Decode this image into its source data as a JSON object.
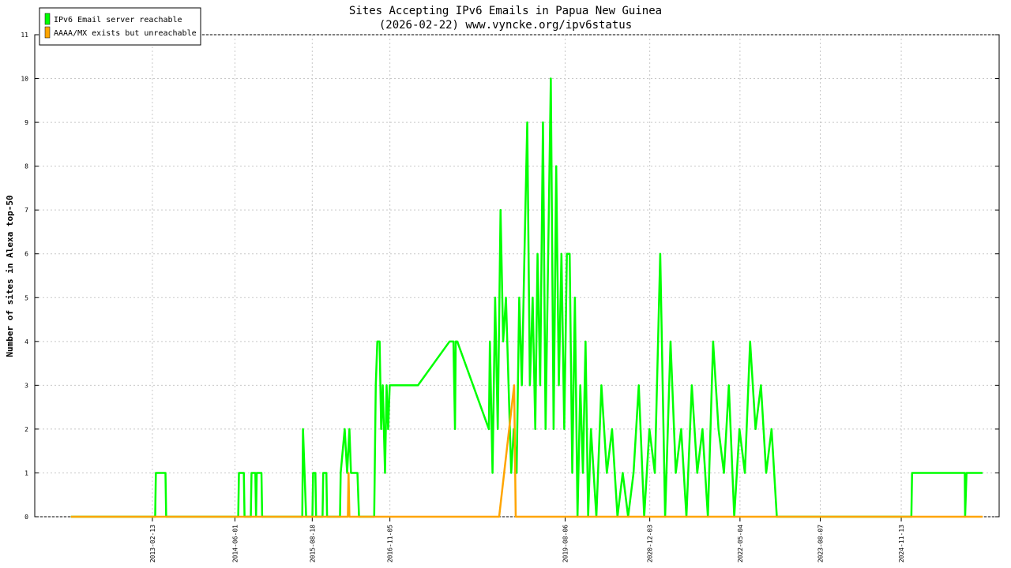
{
  "chart_data": {
    "type": "line",
    "title": "Sites Accepting IPv6 Emails in Papua New Guinea",
    "subtitle": "(2026-02-22) www.vyncke.org/ipv6status",
    "y_label": "Number of sites in Alexa top-50",
    "xlim": [
      "2011-04-11",
      "2026-05-28"
    ],
    "xticks": [
      "2013-02-13",
      "2014-06-01",
      "2015-08-18",
      "2016-11-05",
      "2019-08-06",
      "2020-12-03",
      "2022-05-04",
      "2023-08-07",
      "2024-11-13"
    ],
    "ylim": [
      0,
      11
    ],
    "yticks": [
      0,
      1,
      2,
      3,
      4,
      5,
      6,
      7,
      8,
      9,
      10,
      11
    ],
    "grid": true,
    "legend": "top-left",
    "series": [
      {
        "name": "IPv6 Email server reachable",
        "color": "#00ff00",
        "x": [
          "2011-11-04",
          "2013-03-01",
          "2013-03-05",
          "2013-04-29",
          "2013-05-03",
          "2014-06-20",
          "2014-06-24",
          "2014-07-22",
          "2014-07-26",
          "2014-08-31",
          "2014-09-04",
          "2014-09-26",
          "2014-09-30",
          "2014-10-04",
          "2014-10-31",
          "2014-11-04",
          "2015-06-22",
          "2015-06-26",
          "2015-07-05",
          "2015-07-14",
          "2015-08-19",
          "2015-08-23",
          "2015-09-05",
          "2015-09-09",
          "2015-10-16",
          "2015-10-20",
          "2015-11-07",
          "2015-11-11",
          "2016-01-24",
          "2016-01-28",
          "2016-02-20",
          "2016-03-05",
          "2016-03-18",
          "2016-03-27",
          "2016-05-03",
          "2016-05-12",
          "2016-08-07",
          "2016-08-16",
          "2016-08-25",
          "2016-09-07",
          "2016-09-16",
          "2016-09-25",
          "2016-10-08",
          "2016-10-17",
          "2016-10-26",
          "2016-11-04",
          "2016-11-17",
          "2017-04-15",
          "2017-10-13",
          "2017-11-04",
          "2017-11-13",
          "2017-11-17",
          "2017-11-26",
          "2018-05-26",
          "2018-06-01",
          "2018-06-16",
          "2018-07-01",
          "2018-07-16",
          "2018-08-01",
          "2018-08-16",
          "2018-09-01",
          "2018-09-16",
          "2018-10-01",
          "2018-10-16",
          "2018-11-01",
          "2018-11-16",
          "2018-12-01",
          "2018-12-16",
          "2019-01-01",
          "2019-01-16",
          "2019-02-01",
          "2019-02-16",
          "2019-03-01",
          "2019-03-16",
          "2019-04-01",
          "2019-04-16",
          "2019-05-01",
          "2019-05-16",
          "2019-06-01",
          "2019-06-16",
          "2019-07-01",
          "2019-07-16",
          "2019-08-01",
          "2019-08-16",
          "2019-09-01",
          "2019-09-16",
          "2019-10-01",
          "2019-10-16",
          "2019-11-01",
          "2019-11-16",
          "2019-12-01",
          "2019-12-16",
          "2020-01-01",
          "2020-02-01",
          "2020-03-01",
          "2020-04-01",
          "2020-05-01",
          "2020-06-01",
          "2020-07-01",
          "2020-08-01",
          "2020-09-01",
          "2020-10-01",
          "2020-11-01",
          "2020-12-01",
          "2021-01-01",
          "2021-02-01",
          "2021-03-01",
          "2021-04-01",
          "2021-05-01",
          "2021-06-01",
          "2021-07-01",
          "2021-08-01",
          "2021-09-01",
          "2021-10-01",
          "2021-11-01",
          "2021-12-01",
          "2022-01-01",
          "2022-02-01",
          "2022-03-01",
          "2022-04-01",
          "2022-05-01",
          "2022-06-01",
          "2022-07-01",
          "2022-08-01",
          "2022-09-01",
          "2022-10-01",
          "2022-11-01",
          "2022-12-01",
          "2023-01-01",
          "2025-01-10",
          "2025-01-14",
          "2025-11-12",
          "2025-11-14",
          "2025-11-22",
          "2026-02-22"
        ],
        "values": [
          0,
          0,
          1,
          1,
          0,
          0,
          1,
          1,
          0,
          0,
          1,
          1,
          0,
          1,
          1,
          0,
          0,
          2,
          1,
          0,
          0,
          1,
          1,
          0,
          0,
          1,
          1,
          0,
          0,
          1,
          2,
          1,
          2,
          1,
          1,
          0,
          0,
          3,
          4,
          4,
          2,
          3,
          1,
          3,
          2,
          3,
          3,
          3,
          4,
          4,
          2,
          4,
          4,
          2,
          4,
          1,
          5,
          2,
          7,
          4,
          5,
          3,
          1,
          2,
          1,
          5,
          3,
          6,
          9,
          3,
          5,
          2,
          6,
          3,
          9,
          2,
          6,
          10,
          2,
          8,
          3,
          6,
          2,
          6,
          6,
          1,
          5,
          0,
          3,
          1,
          4,
          0,
          2,
          0,
          3,
          1,
          2,
          0,
          1,
          0,
          1,
          3,
          0,
          2,
          1,
          6,
          0,
          4,
          1,
          2,
          0,
          3,
          1,
          2,
          0,
          4,
          2,
          1,
          3,
          0,
          2,
          1,
          4,
          2,
          3,
          1,
          2,
          0,
          0,
          0,
          1,
          1,
          0,
          1,
          1
        ]
      },
      {
        "name": "AAAA/MX exists but unreachable",
        "color": "#ffa500",
        "x": [
          "2011-11-04",
          "2016-03-09",
          "2016-03-13",
          "2016-03-18",
          "2018-07-24",
          "2018-10-18",
          "2018-10-27",
          "2026-02-22"
        ],
        "values": [
          0,
          0,
          1,
          0,
          0,
          3,
          0,
          0
        ]
      }
    ]
  }
}
